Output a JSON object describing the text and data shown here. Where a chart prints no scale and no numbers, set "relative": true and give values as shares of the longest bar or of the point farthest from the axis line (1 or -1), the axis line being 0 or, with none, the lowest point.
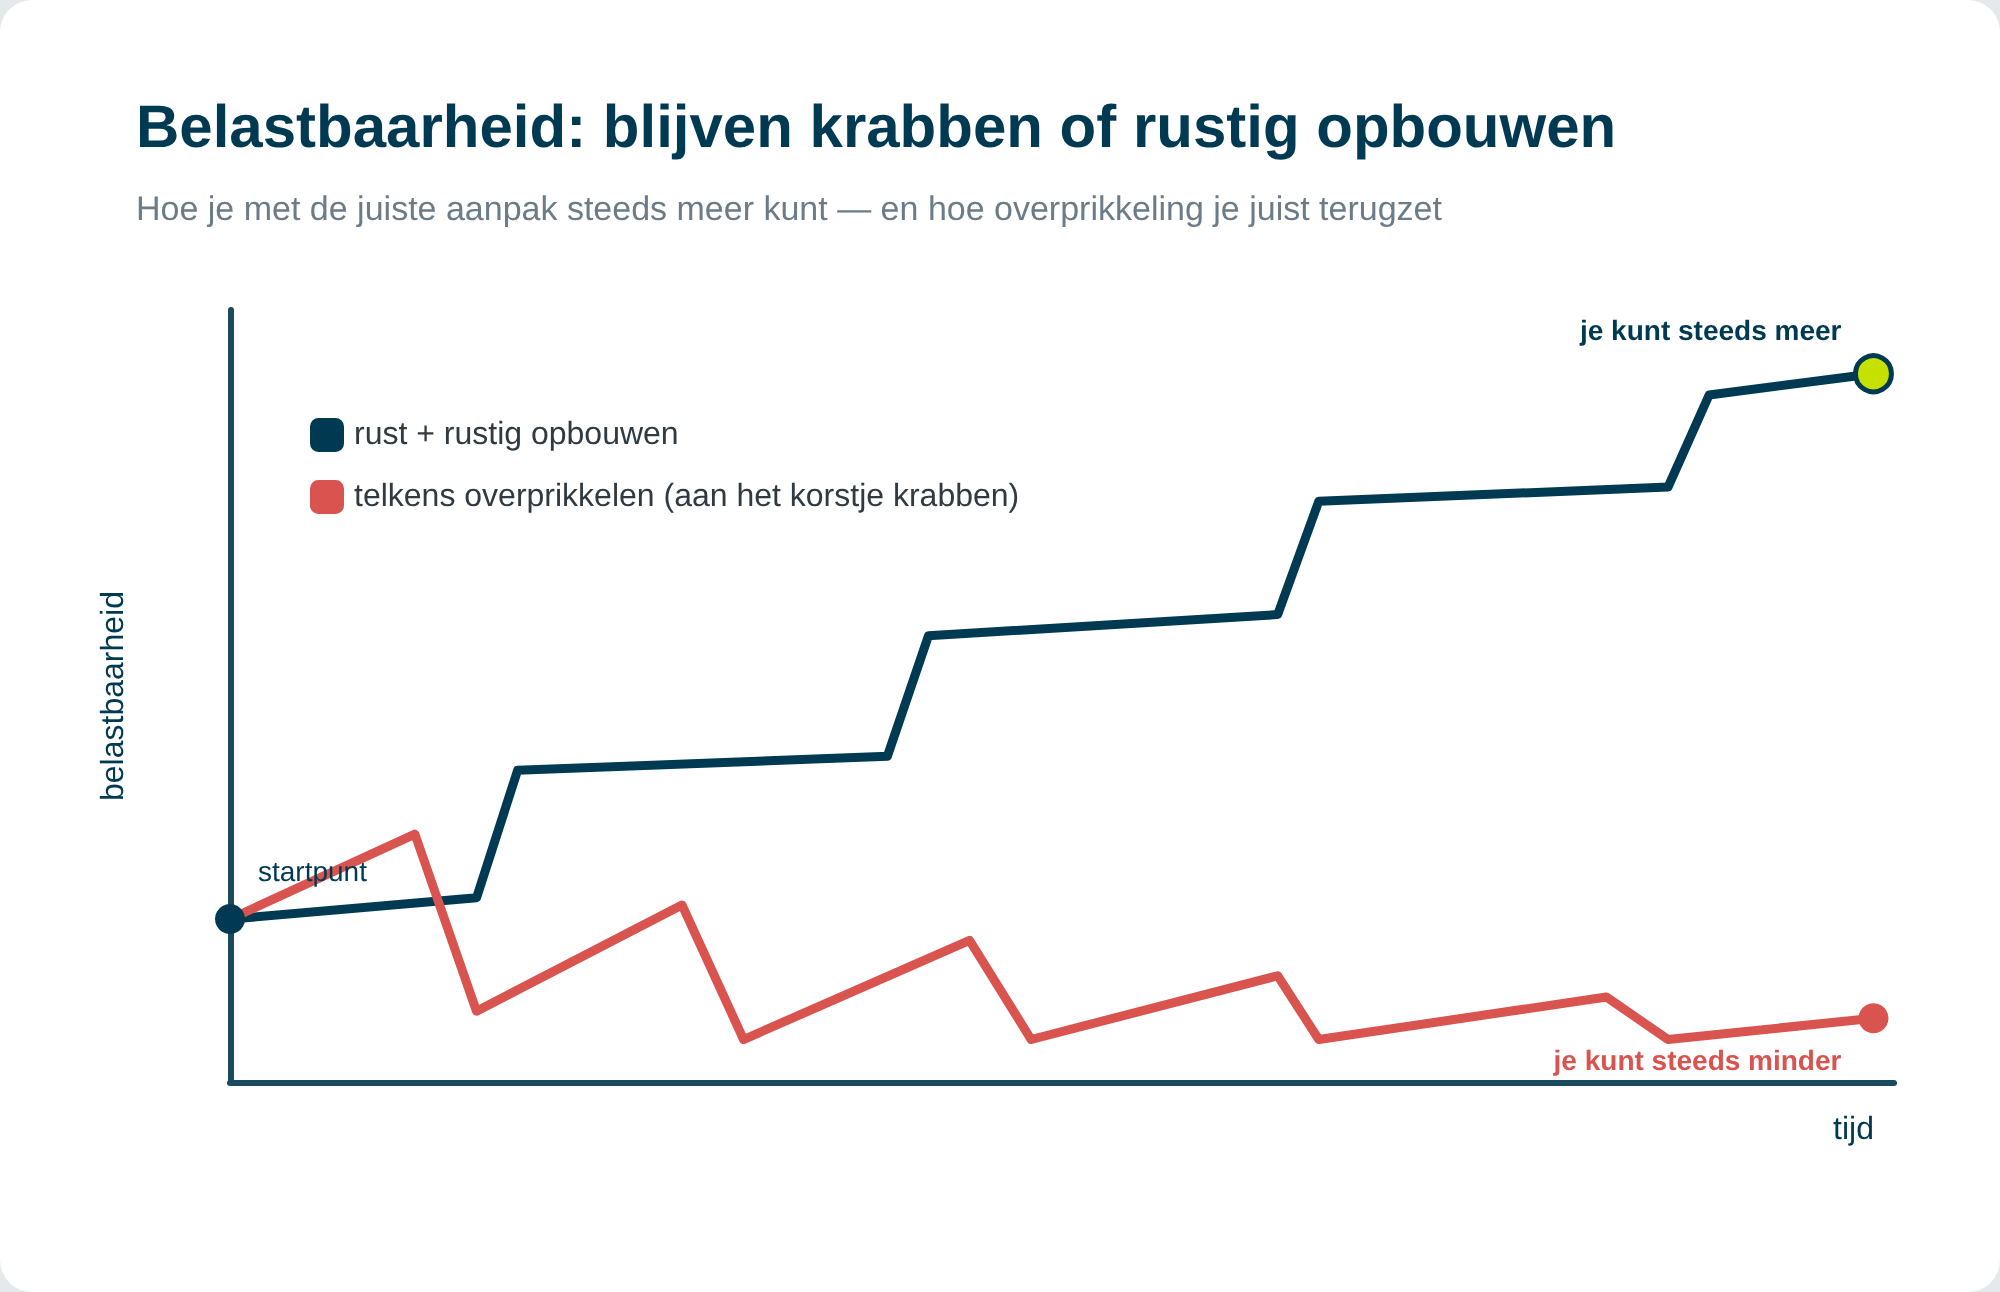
{
  "chart_data": {
    "type": "line",
    "title": "Belastbaarheid: blijven krabben of rustig opbouwen",
    "subtitle": "Hoe je met de juiste aanpak steeds meer kunt — en hoe overprikkeling je juist terugzet",
    "xlabel": "tijd",
    "ylabel": "belastbaarheid",
    "relative": true,
    "legend": "top left",
    "grid": false,
    "categories": [
      null,
      null,
      null,
      null,
      null,
      null,
      null,
      null,
      null,
      null,
      null,
      null,
      null,
      null,
      null,
      null,
      null,
      null,
      null,
      null,
      null,
      null,
      null,
      null,
      null,
      null,
      null,
      null,
      null,
      null,
      null,
      null,
      null,
      null,
      null,
      null,
      null,
      null,
      null,
      null,
      null,
      null,
      null,
      null,
      null,
      null,
      null,
      null,
      null,
      null,
      null,
      null,
      null,
      null,
      null,
      null,
      null,
      null,
      null,
      null,
      null,
      null,
      null,
      null,
      null,
      null,
      null,
      null,
      null,
      null,
      null,
      null,
      null,
      null,
      null,
      null,
      null,
      null,
      null,
      null,
      null,
      null
    ],
    "series": [
      {
        "name": "rust + rustig opbouwen",
        "color": "#003a52",
        "values": [
          0.23,
          null,
          null,
          null,
          null,
          null,
          null,
          null,
          null,
          null,
          null,
          null,
          0.26,
          null,
          0.44,
          null,
          null,
          null,
          null,
          null,
          null,
          null,
          null,
          null,
          null,
          null,
          null,
          null,
          null,
          null,
          null,
          null,
          0.46,
          null,
          0.63,
          null,
          null,
          null,
          null,
          null,
          null,
          null,
          null,
          null,
          null,
          null,
          null,
          null,
          null,
          null,
          null,
          0.66,
          null,
          0.82,
          null,
          null,
          null,
          null,
          null,
          null,
          null,
          null,
          null,
          null,
          null,
          null,
          null,
          null,
          null,
          null,
          0.84,
          null,
          0.97,
          null,
          null,
          null,
          null,
          null,
          null,
          null,
          1,
          null
        ]
      },
      {
        "name": "telkens overprikkelen (aan het korstje krabben)",
        "color": "#d9534f",
        "values": [
          0.23,
          null,
          null,
          null,
          null,
          null,
          null,
          null,
          null,
          0.35,
          null,
          null,
          0.1,
          null,
          null,
          null,
          null,
          null,
          null,
          null,
          null,
          null,
          0.25,
          null,
          null,
          0.06,
          null,
          null,
          null,
          null,
          null,
          null,
          null,
          null,
          null,
          null,
          0.2,
          null,
          null,
          0.06,
          null,
          null,
          null,
          null,
          null,
          null,
          null,
          null,
          null,
          null,
          null,
          0.15,
          null,
          0.06,
          null,
          null,
          null,
          null,
          null,
          null,
          null,
          null,
          null,
          null,
          null,
          null,
          null,
          0.12,
          null,
          null,
          0.06,
          null,
          null,
          null,
          null,
          null,
          null,
          null,
          null,
          null,
          0.09,
          null
        ]
      }
    ],
    "annotations": [
      "startpunt",
      "je kunt steeds meer",
      "je kunt steeds minder"
    ]
  }
}
